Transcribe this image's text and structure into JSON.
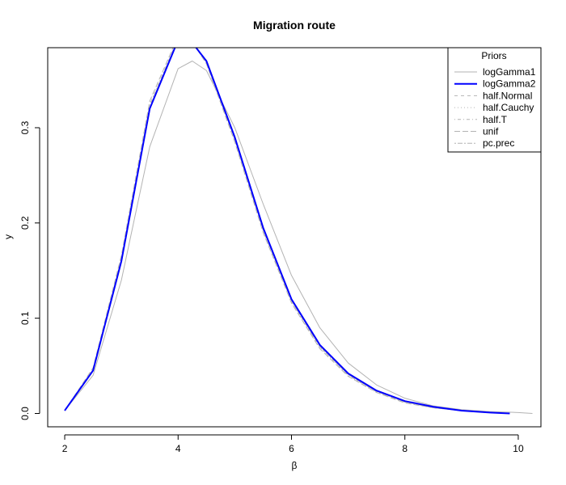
{
  "chart_data": {
    "type": "line",
    "title": "Migration route",
    "xlabel": "β",
    "ylabel": "y",
    "xlim": [
      1.7,
      10.4
    ],
    "ylim": [
      -0.014,
      0.384
    ],
    "xticks": [
      "2",
      "4",
      "6",
      "8",
      "10"
    ],
    "yticks": [
      "0.0",
      "0.1",
      "0.2",
      "0.3"
    ],
    "legend": {
      "title": "Priors",
      "placement": "top-right"
    },
    "series": [
      {
        "name": "logGamma1",
        "color": "#b3b3b3",
        "dash": "solid",
        "width": 1,
        "x": [
          2.0,
          2.5,
          3.0,
          3.5,
          4.0,
          4.25,
          4.5,
          5.0,
          5.5,
          6.0,
          6.5,
          7.0,
          7.5,
          8.0,
          8.5,
          9.0,
          9.5,
          10.0,
          10.25
        ],
        "y": [
          0.003,
          0.04,
          0.14,
          0.28,
          0.362,
          0.37,
          0.36,
          0.3,
          0.22,
          0.145,
          0.09,
          0.053,
          0.03,
          0.016,
          0.008,
          0.004,
          0.002,
          0.001,
          0.0
        ]
      },
      {
        "name": "logGamma2",
        "color": "#0000ff",
        "dash": "solid",
        "width": 2,
        "x": [
          2.0,
          2.5,
          3.0,
          3.5,
          4.0,
          4.2,
          4.5,
          5.0,
          5.5,
          6.0,
          6.5,
          7.0,
          7.5,
          8.0,
          8.5,
          9.0,
          9.5,
          9.85
        ],
        "y": [
          0.003,
          0.045,
          0.16,
          0.32,
          0.392,
          0.393,
          0.37,
          0.29,
          0.195,
          0.12,
          0.072,
          0.042,
          0.024,
          0.013,
          0.007,
          0.003,
          0.001,
          0.0
        ]
      },
      {
        "name": "half.Normal",
        "color": "#b3b3b3",
        "dash": "dashed",
        "width": 1,
        "x": [
          2.0,
          2.5,
          3.0,
          3.5,
          4.0,
          4.2,
          4.5,
          5.0,
          5.5,
          6.0,
          6.5,
          7.0,
          7.5,
          8.0,
          8.5,
          9.0,
          9.5,
          9.85
        ],
        "y": [
          0.003,
          0.046,
          0.162,
          0.322,
          0.393,
          0.393,
          0.369,
          0.288,
          0.193,
          0.118,
          0.07,
          0.041,
          0.023,
          0.012,
          0.006,
          0.003,
          0.001,
          0.0
        ]
      },
      {
        "name": "half.Cauchy",
        "color": "#b3b3b3",
        "dash": "dotted",
        "width": 1,
        "x": [
          2.0,
          2.5,
          3.0,
          3.5,
          4.0,
          4.2,
          4.5,
          5.0,
          5.5,
          6.0,
          6.5,
          7.0,
          7.5,
          8.0,
          8.5,
          9.0,
          9.5,
          9.85
        ],
        "y": [
          0.003,
          0.047,
          0.164,
          0.325,
          0.394,
          0.394,
          0.368,
          0.287,
          0.192,
          0.117,
          0.069,
          0.04,
          0.022,
          0.012,
          0.006,
          0.003,
          0.001,
          0.0
        ]
      },
      {
        "name": "half.T",
        "color": "#b3b3b3",
        "dash": "dotdash",
        "width": 1,
        "x": [
          2.0,
          2.5,
          3.0,
          3.5,
          4.0,
          4.2,
          4.5,
          5.0,
          5.5,
          6.0,
          6.5,
          7.0,
          7.5,
          8.0,
          8.5,
          9.0,
          9.5,
          9.85
        ],
        "y": [
          0.003,
          0.046,
          0.163,
          0.324,
          0.394,
          0.394,
          0.369,
          0.287,
          0.192,
          0.118,
          0.07,
          0.04,
          0.023,
          0.012,
          0.006,
          0.003,
          0.001,
          0.0
        ]
      },
      {
        "name": "unif",
        "color": "#b3b3b3",
        "dash": "longdash",
        "width": 1,
        "x": [
          2.0,
          2.5,
          3.0,
          3.5,
          4.0,
          4.2,
          4.5,
          5.0,
          5.5,
          6.0,
          6.5,
          7.0,
          7.5,
          8.0,
          8.5,
          9.0,
          9.5,
          9.85
        ],
        "y": [
          0.003,
          0.048,
          0.166,
          0.328,
          0.396,
          0.395,
          0.367,
          0.285,
          0.19,
          0.116,
          0.068,
          0.039,
          0.022,
          0.011,
          0.006,
          0.003,
          0.001,
          0.0
        ]
      },
      {
        "name": "pc.prec",
        "color": "#b3b3b3",
        "dash": "twodash",
        "width": 1,
        "x": [
          2.0,
          2.5,
          3.0,
          3.5,
          4.0,
          4.2,
          4.5,
          5.0,
          5.5,
          6.0,
          6.5,
          7.0,
          7.5,
          8.0,
          8.5,
          9.0,
          9.5,
          9.85
        ],
        "y": [
          0.003,
          0.046,
          0.161,
          0.321,
          0.393,
          0.393,
          0.37,
          0.289,
          0.194,
          0.119,
          0.071,
          0.041,
          0.023,
          0.012,
          0.006,
          0.003,
          0.001,
          0.0
        ]
      }
    ]
  }
}
